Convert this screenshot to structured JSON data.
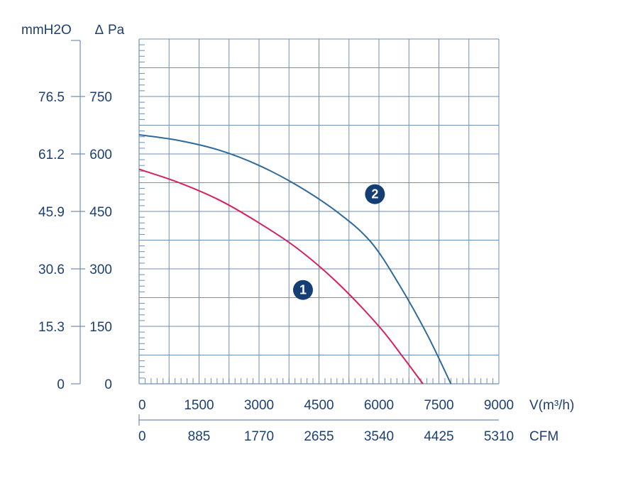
{
  "chart_data": {
    "type": "line",
    "x_label": "V(m³/h)",
    "x2_label": "CFM",
    "y_label": "Pa",
    "y_label_symbol": "∆",
    "y2_label": "mmH2O",
    "x_ticks": [
      "0",
      "1500",
      "3000",
      "4500",
      "6000",
      "7500",
      "9000"
    ],
    "x2_ticks": [
      "0",
      "885",
      "1770",
      "2655",
      "3540",
      "4425",
      "5310"
    ],
    "y_ticks": [
      "0",
      "150",
      "300",
      "450",
      "600",
      "750"
    ],
    "y2_ticks": [
      "0",
      "15.3",
      "30.6",
      "45.9",
      "61.2",
      "76.5"
    ],
    "xlim": [
      0,
      9000
    ],
    "ylim": [
      0,
      900
    ],
    "grid": true,
    "series": [
      {
        "name": "1",
        "color": "#d81f5c",
        "x": [
          0,
          1000,
          2000,
          3000,
          4000,
          5000,
          6000,
          6600,
          7100
        ],
        "y": [
          560,
          525,
          480,
          420,
          350,
          260,
          150,
          70,
          0
        ]
      },
      {
        "name": "2",
        "color": "#2f6a9a",
        "x": [
          0,
          1000,
          2000,
          3000,
          4000,
          5000,
          5800,
          6500,
          7200,
          7800
        ],
        "y": [
          650,
          635,
          610,
          570,
          515,
          445,
          370,
          260,
          130,
          0
        ]
      }
    ],
    "badges": [
      {
        "label": "2",
        "x": 5900,
        "y": 495
      },
      {
        "label": "1",
        "x": 4100,
        "y": 245
      }
    ]
  }
}
